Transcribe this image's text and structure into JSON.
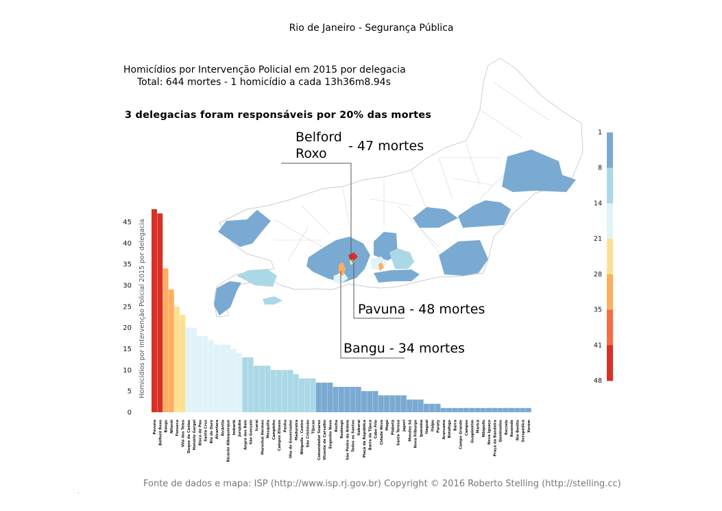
{
  "title": "Rio de Janeiro - Segurança Pública",
  "subtitle1": "Homicídios por Intervenção Policial em 2015 por delegacia",
  "subtitle2": "Total: 644 mortes - 1 homicídio a cada 13h36m8.94s",
  "headline": "3 delegacias foram responsáveis por 20% das mortes",
  "callouts": {
    "belford_name": "Belford\nRoxo",
    "belford_count": "- 47 mortes",
    "pavuna": "Pavuna - 48 mortes",
    "bangu": "Bangu - 34 mortes"
  },
  "footer": "Fonte de dados e mapa: ISP (http://www.isp.rj.gov.br) Copyright © 2016 Roberto Stelling (http://stelling.cc)",
  "footer_dot": ".",
  "colors": {
    "c1": "#7aaad2",
    "c2": "#abd8e6",
    "c3": "#e0f3f8",
    "c4": "#fee090",
    "c5": "#fdae61",
    "c6": "#f46d43",
    "c7": "#d73027"
  },
  "colorbar": {
    "ticks": [
      "1",
      "8",
      "14",
      "21",
      "28",
      "35",
      "41",
      "48"
    ],
    "colors": [
      "#7aaad2",
      "#abd8e6",
      "#e0f3f8",
      "#fee090",
      "#fdae61",
      "#f46d43",
      "#d73027"
    ]
  },
  "chart_data": {
    "type": "bar",
    "ylabel": "Homicídios por Intervenção Policial 2015 por delegacia",
    "ylim": [
      0,
      48
    ],
    "yticks": [
      0,
      5,
      10,
      15,
      20,
      25,
      30,
      35,
      40,
      45
    ],
    "categories": [
      "Pavuna",
      "Belford Roxo",
      "Bangu",
      "Niterói",
      "Fonseca",
      "Vila dos Teles",
      "Duque de Caxias",
      "Honório Gurgel",
      "Bloco de Pau",
      "Santa Cruz",
      "Rio do Ouro",
      "Alcantara",
      "Alcântia",
      "Ricardo Albuquerque",
      "Imbariê",
      "Jurujuba",
      "Angra dos Reis",
      "São Gonçalo",
      "Icaraí",
      "Marechal Hermes",
      "Mesquita",
      "Campinho",
      "Campos Elíseos",
      "Penha",
      "Ilha do Governador",
      "Madureira",
      "Nilópolis - Centro",
      "São Cristóvão",
      "Tijucas",
      "Comendador Soares",
      "Vicente de Carvalho",
      "Engenho Novo",
      "Rocha",
      "Realengo",
      "São Pedro da Aldeia",
      "Todos os Santos",
      "Itaboraí",
      "Piaçá da República",
      "Barra da Tijuca",
      "Cabo Frio",
      "Cidade Nova",
      "Magé",
      "Piabetá",
      "Santa Teresa",
      "Japeri",
      "Mendes Sá",
      "Nova Friburgo",
      "Ipanema",
      "Itaguaí",
      "Itaipu",
      "Paraty",
      "Araruama",
      "Botafogo",
      "Barra",
      "Campo Grande",
      "Campos",
      "Guapimirim",
      "Maricá",
      "Nilópolis",
      "Nova Iguaçu",
      "Praça da Bandeira",
      "Queimados",
      "Recreio",
      "Resende",
      "Rio Bonito",
      "Seropédica",
      "Xerém"
    ],
    "values": [
      48,
      47,
      34,
      29,
      25,
      23,
      20,
      20,
      18,
      18,
      17,
      16,
      16,
      16,
      15,
      14,
      13,
      13,
      11,
      11,
      11,
      10,
      10,
      10,
      10,
      9,
      8,
      8,
      8,
      7,
      7,
      7,
      6,
      6,
      6,
      6,
      6,
      5,
      5,
      5,
      4,
      4,
      4,
      4,
      4,
      3,
      3,
      3,
      2,
      2,
      2,
      1,
      1,
      1,
      1,
      1,
      1,
      1,
      1,
      1,
      1,
      1,
      1,
      1,
      1,
      1,
      1
    ],
    "annotations": [
      "Belford Roxo - 47 mortes",
      "Pavuna - 48 mortes",
      "Bangu - 34 mortes"
    ],
    "grid": false
  }
}
